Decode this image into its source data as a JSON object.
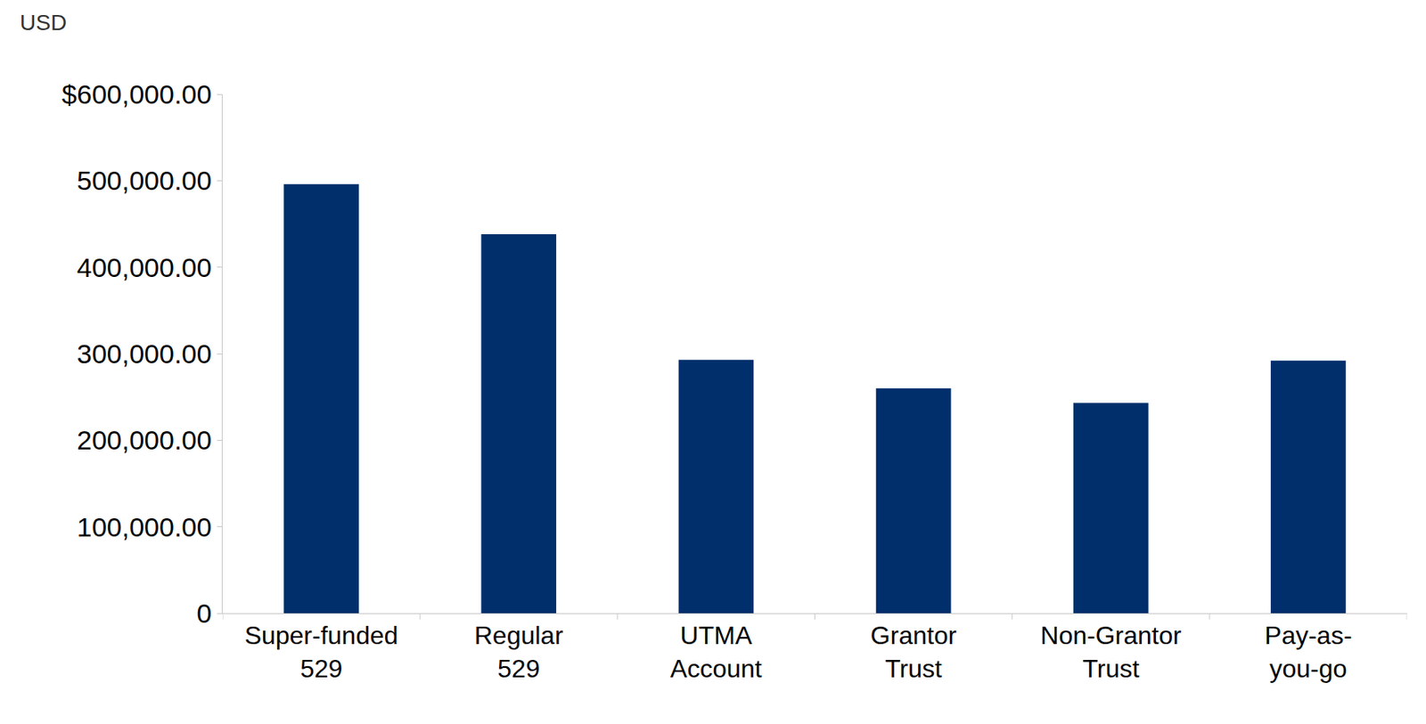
{
  "chart_data": {
    "type": "bar",
    "y_axis_label": "USD",
    "categories": [
      "Super-funded\n529",
      "Regular\n529",
      "UTMA\nAccount",
      "Grantor\nTrust",
      "Non-Grantor\nTrust",
      "Pay-as-\nyou-go"
    ],
    "values": [
      496000,
      438000,
      293000,
      260000,
      243000,
      292000
    ],
    "color": "#002f6c",
    "ylim": [
      0,
      600000
    ],
    "yticks": [
      0,
      {
        "value": 100000,
        "label": "100,000.00"
      },
      {
        "value": 200000,
        "label": "200,000.00"
      },
      {
        "value": 300000,
        "label": "300,000.00"
      },
      {
        "value": 400000,
        "label": "400,000.00"
      },
      {
        "value": 500000,
        "label": "500,000.00"
      },
      {
        "value": 600000,
        "label": "$600,000.00"
      }
    ],
    "grid": false
  }
}
